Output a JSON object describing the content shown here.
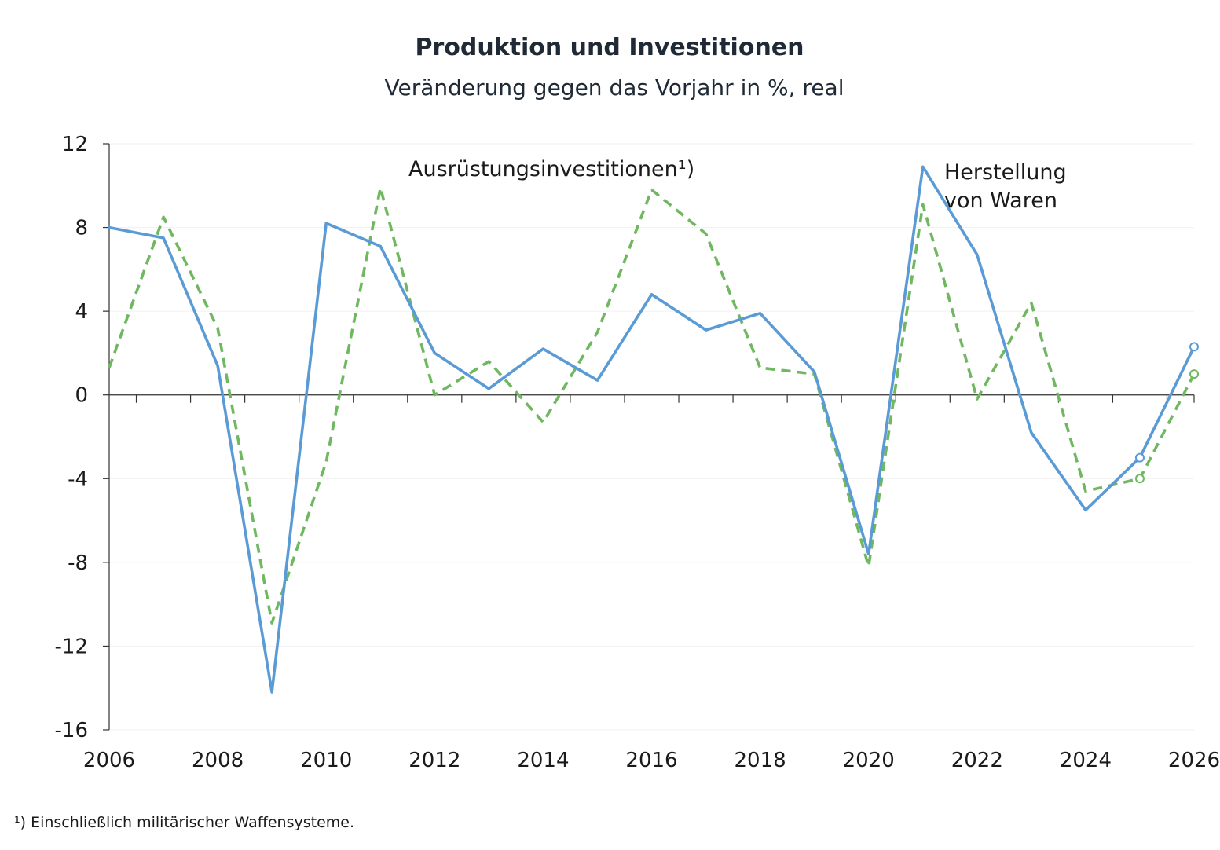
{
  "chart_data": {
    "type": "line",
    "title": "Produktion und Investitionen",
    "subtitle": "Veränderung gegen das Vorjahr in %, real",
    "xlabel": "",
    "ylabel": "",
    "xlim": [
      2006,
      2026
    ],
    "ylim": [
      -16,
      12
    ],
    "yticks": [
      12,
      8,
      4,
      0,
      -4,
      -8,
      -12,
      -16
    ],
    "ytick_labels": [
      "12",
      "8",
      "4",
      "0",
      "-4",
      "-8",
      "-12",
      "-16"
    ],
    "xticks": [
      2006,
      2008,
      2010,
      2012,
      2014,
      2016,
      2018,
      2020,
      2022,
      2024,
      2026
    ],
    "xtick_labels": [
      "2006",
      "2008",
      "2010",
      "2012",
      "2014",
      "2016",
      "2018",
      "2020",
      "2022",
      "2024",
      "2026"
    ],
    "grid": true,
    "legend": "none",
    "x": [
      2006,
      2007,
      2008,
      2009,
      2010,
      2011,
      2012,
      2013,
      2014,
      2015,
      2016,
      2017,
      2018,
      2019,
      2020,
      2021,
      2022,
      2023,
      2024,
      2025,
      2026
    ],
    "series": [
      {
        "label_lines": [
          "Herstellung",
          "von Waren"
        ],
        "color": "#5b9bd5",
        "line_style": "solid",
        "values": [
          8.0,
          7.5,
          1.4,
          -14.2,
          8.2,
          7.1,
          2.0,
          0.3,
          2.2,
          0.7,
          4.8,
          3.1,
          3.9,
          1.1,
          -7.6,
          10.9,
          6.7,
          -1.8,
          -5.5,
          -3.0,
          2.3
        ],
        "forecast_from": 2025
      },
      {
        "label_lines": [
          "Ausrüstungsinvestitionen¹)"
        ],
        "color": "#70b860",
        "line_style": "dashed",
        "values": [
          1.3,
          8.5,
          3.2,
          -10.9,
          -3.2,
          9.9,
          0.0,
          1.6,
          -1.3,
          3.0,
          9.8,
          7.7,
          1.3,
          1.0,
          -8.2,
          9.1,
          -0.2,
          4.4,
          -4.6,
          -4.0,
          1.0
        ],
        "forecast_from": 2025
      }
    ],
    "footnote": "¹) Einschließlich militärischer Waffensysteme."
  }
}
